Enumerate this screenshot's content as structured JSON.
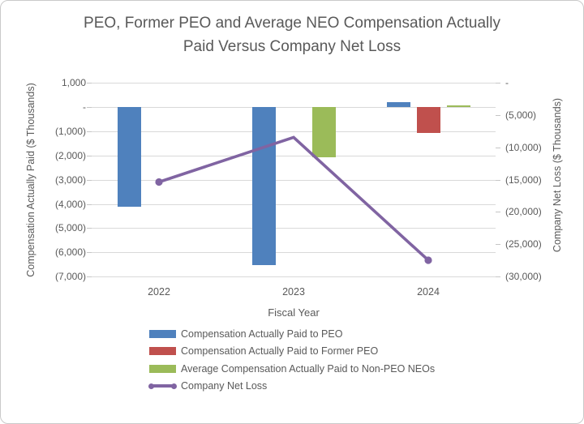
{
  "chart_data": {
    "type": "combo-bar-line",
    "title": "PEO, Former PEO and Average NEO Compensation Actually Paid Versus Company Net Loss",
    "title_lines": [
      "PEO, Former PEO and Average NEO Compensation Actually",
      "Paid Versus Company Net Loss"
    ],
    "xlabel": "Fiscal Year",
    "ylabel_left": "Compensation Actually Paid ($ Thousands)",
    "ylabel_right": "Company Net Loss ($ Thousands)",
    "categories": [
      "2022",
      "2023",
      "2024"
    ],
    "left_axis": {
      "max": 1000,
      "min": -7000,
      "tick_step": 1000,
      "tick_labels": [
        "1,000",
        "-",
        "(1,000)",
        "(2,000)",
        "(3,000)",
        "(4,000)",
        "(5,000)",
        "(6,000)",
        "(7,000)"
      ]
    },
    "right_axis": {
      "max": 0,
      "min": -30000,
      "tick_step": 5000,
      "tick_labels": [
        "-",
        "(5,000)",
        "(10,000)",
        "(15,000)",
        "(20,000)",
        "(25,000)",
        "(30,000)"
      ]
    },
    "bar_series": [
      {
        "name": "Compensation Actually Paid to PEO",
        "color": "#4F81BD",
        "values": [
          -4100,
          -6500,
          200
        ]
      },
      {
        "name": "Compensation Actually Paid to Former PEO",
        "color": "#C0504D",
        "values": [
          null,
          null,
          -1050
        ]
      },
      {
        "name": "Average Compensation Actually Paid to Non-PEO NEOs",
        "color": "#9BBB59",
        "values": [
          null,
          -2050,
          90
        ]
      }
    ],
    "line_series": {
      "name": "Company Net Loss",
      "color": "#8064A2",
      "values": [
        -15300,
        -8400,
        -27400
      ],
      "axis": "right",
      "markers": "ends"
    },
    "grid": true,
    "legend_position": "bottom-left",
    "colors": {
      "gridline": "#D9D9D9",
      "text": "#595959"
    }
  }
}
